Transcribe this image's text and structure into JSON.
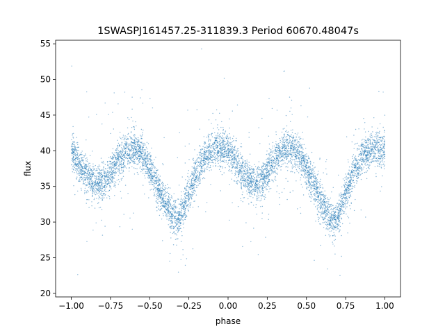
{
  "chart_data": {
    "type": "scatter",
    "title": "1SWASPJ161457.25-311839.3 Period 60670.48047s",
    "xlabel": "phase",
    "ylabel": "flux",
    "xlim": [
      -1.1,
      1.1
    ],
    "ylim": [
      19.5,
      55.5
    ],
    "xticks": [
      -1.0,
      -0.75,
      -0.5,
      -0.25,
      0.0,
      0.25,
      0.5,
      0.75,
      1.0
    ],
    "xtick_labels": [
      "−1.00",
      "−0.75",
      "−0.50",
      "−0.25",
      "0.00",
      "0.25",
      "0.50",
      "0.75",
      "1.00"
    ],
    "yticks": [
      20,
      25,
      30,
      35,
      40,
      45,
      50,
      55
    ],
    "ytick_labels": [
      "20",
      "25",
      "30",
      "35",
      "40",
      "45",
      "50",
      "55"
    ],
    "grid": false,
    "point_color": "#1f77b4",
    "series": [
      {
        "phase": [
          -1.0,
          -0.95,
          -0.9,
          -0.85,
          -0.8,
          -0.75,
          -0.7,
          -0.65,
          -0.6,
          -0.55,
          -0.5,
          -0.45,
          -0.4,
          -0.35,
          -0.32,
          -0.3,
          -0.25,
          -0.2,
          -0.15,
          -0.1,
          -0.05,
          0.0,
          0.05,
          0.1,
          0.15,
          0.2,
          0.25,
          0.3,
          0.35,
          0.4,
          0.45,
          0.5,
          0.55,
          0.6,
          0.65,
          0.68,
          0.7,
          0.75,
          0.8,
          0.85,
          0.9,
          0.95,
          1.0
        ],
        "flux": [
          40.0,
          38.0,
          36.5,
          35.5,
          35.5,
          37.0,
          38.8,
          40.0,
          40.5,
          39.5,
          37.5,
          35.0,
          32.5,
          30.8,
          30.0,
          31.0,
          34.0,
          37.0,
          39.0,
          40.0,
          40.3,
          40.0,
          38.5,
          36.5,
          35.5,
          35.5,
          37.0,
          38.8,
          40.0,
          40.5,
          39.5,
          37.5,
          35.0,
          32.5,
          30.8,
          30.0,
          31.0,
          34.0,
          37.0,
          39.0,
          40.0,
          40.3,
          40.0
        ]
      }
    ]
  }
}
